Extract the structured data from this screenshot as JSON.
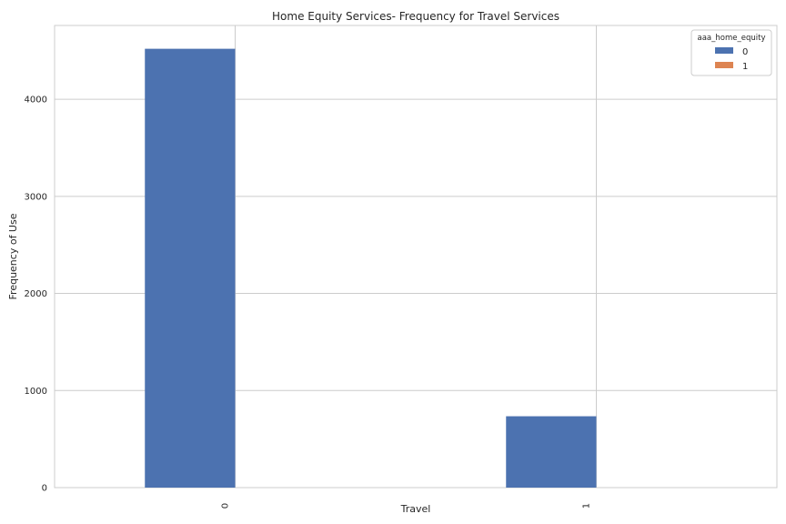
{
  "chart_data": {
    "type": "bar",
    "title": "Home Equity Services- Frequency for Travel Services",
    "xlabel": "Travel",
    "ylabel": "Frequency of Use",
    "categories": [
      "0",
      "1"
    ],
    "series": [
      {
        "name": "0",
        "values": [
          4520,
          735
        ]
      },
      {
        "name": "1",
        "values": [
          0,
          0
        ]
      }
    ],
    "ylim": [
      0,
      4760
    ],
    "yticks": [
      0,
      1000,
      2000,
      3000,
      4000
    ],
    "legend": {
      "title": "aaa_home_equity",
      "position": "top-right"
    },
    "grid": true,
    "colors": {
      "series_0": "#4c72b0",
      "series_1": "#dd8452",
      "grid": "#cccccc",
      "axes_edge": "#cccccc"
    }
  }
}
